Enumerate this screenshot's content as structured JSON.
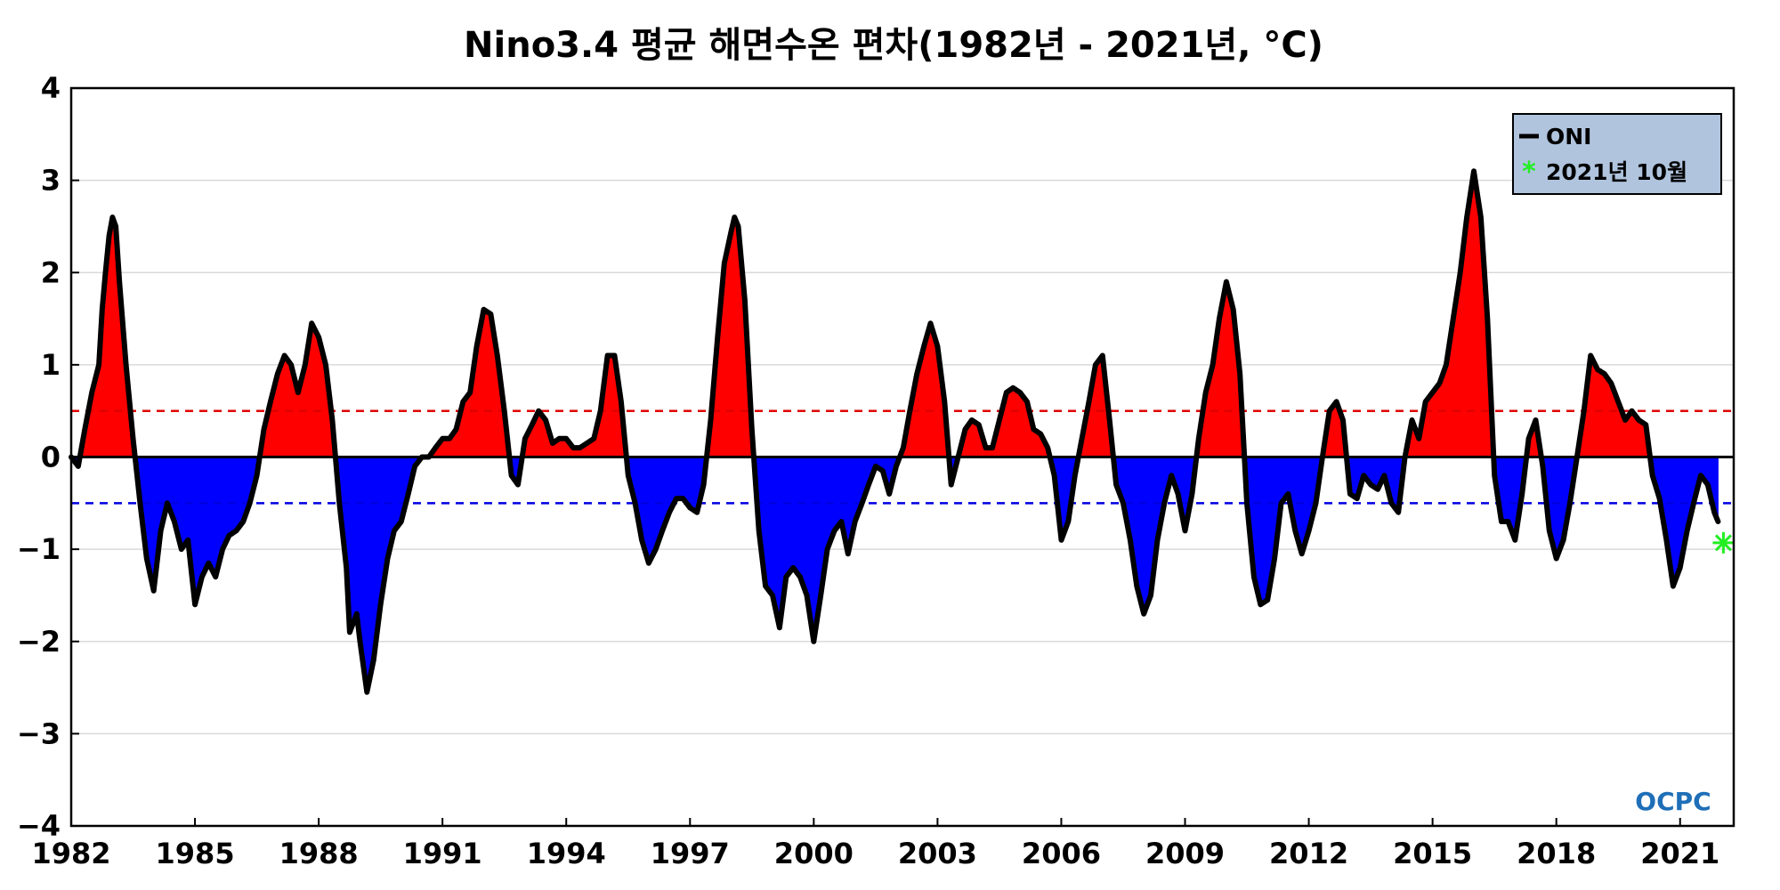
{
  "chart_data": {
    "type": "area",
    "title": "Nino3.4 평균 해면수온 편차(1982년 - 2021년, °C)",
    "xlabel": "",
    "ylabel": "",
    "xlim": [
      1982.0,
      2022.3
    ],
    "ylim": [
      -4,
      4
    ],
    "x_ticks": [
      {
        "value": 1982,
        "label": "1982"
      },
      {
        "value": 1985,
        "label": "1985"
      },
      {
        "value": 1988,
        "label": "1988"
      },
      {
        "value": 1991,
        "label": "1991"
      },
      {
        "value": 1994,
        "label": "1994"
      },
      {
        "value": 1997,
        "label": "1997"
      },
      {
        "value": 2000,
        "label": "2000"
      },
      {
        "value": 2003,
        "label": "2003"
      },
      {
        "value": 2006,
        "label": "2006"
      },
      {
        "value": 2009,
        "label": "2009"
      },
      {
        "value": 2012,
        "label": "2012"
      },
      {
        "value": 2015,
        "label": "2015"
      },
      {
        "value": 2018,
        "label": "2018"
      },
      {
        "value": 2021,
        "label": "2021"
      }
    ],
    "y_ticks": [
      {
        "value": 4,
        "label": "4"
      },
      {
        "value": 3,
        "label": "3"
      },
      {
        "value": 2,
        "label": "2"
      },
      {
        "value": 1,
        "label": "1"
      },
      {
        "value": 0,
        "label": "0"
      },
      {
        "value": -1,
        "label": "−1"
      },
      {
        "value": -2,
        "label": "−2"
      },
      {
        "value": -3,
        "label": "−3"
      },
      {
        "value": -4,
        "label": "−4"
      }
    ],
    "grid": true,
    "thresholds": [
      {
        "value": 0.5,
        "color": "#e00000",
        "style": "dashed"
      },
      {
        "value": -0.5,
        "color": "#0000e0",
        "style": "dashed"
      }
    ],
    "colors": {
      "positive_fill": "#ff0000",
      "negative_fill": "#0000ff",
      "oni_line": "#000000",
      "marker": "#22ee22",
      "legend_bg": "#b0c4de"
    },
    "legend": {
      "position": "top-right",
      "entries": [
        "ONI",
        "2021년 10월"
      ]
    },
    "series": [
      {
        "name": "ONI",
        "points": [
          [
            1982.0,
            0.0
          ],
          [
            1982.17,
            -0.1
          ],
          [
            1982.33,
            0.3
          ],
          [
            1982.5,
            0.7
          ],
          [
            1982.67,
            1.0
          ],
          [
            1982.75,
            1.6
          ],
          [
            1982.83,
            2.0
          ],
          [
            1982.92,
            2.4
          ],
          [
            1983.0,
            2.6
          ],
          [
            1983.08,
            2.5
          ],
          [
            1983.17,
            1.9
          ],
          [
            1983.33,
            1.0
          ],
          [
            1983.5,
            0.2
          ],
          [
            1983.67,
            -0.5
          ],
          [
            1983.83,
            -1.1
          ],
          [
            1984.0,
            -1.45
          ],
          [
            1984.17,
            -0.8
          ],
          [
            1984.33,
            -0.5
          ],
          [
            1984.5,
            -0.7
          ],
          [
            1984.67,
            -1.0
          ],
          [
            1984.83,
            -0.9
          ],
          [
            1985.0,
            -1.6
          ],
          [
            1985.17,
            -1.3
          ],
          [
            1985.33,
            -1.15
          ],
          [
            1985.5,
            -1.3
          ],
          [
            1985.67,
            -1.0
          ],
          [
            1985.83,
            -0.85
          ],
          [
            1986.0,
            -0.8
          ],
          [
            1986.17,
            -0.7
          ],
          [
            1986.33,
            -0.5
          ],
          [
            1986.5,
            -0.2
          ],
          [
            1986.67,
            0.3
          ],
          [
            1986.83,
            0.6
          ],
          [
            1987.0,
            0.9
          ],
          [
            1987.17,
            1.1
          ],
          [
            1987.33,
            1.0
          ],
          [
            1987.5,
            0.7
          ],
          [
            1987.67,
            1.0
          ],
          [
            1987.83,
            1.45
          ],
          [
            1988.0,
            1.3
          ],
          [
            1988.17,
            1.0
          ],
          [
            1988.33,
            0.4
          ],
          [
            1988.5,
            -0.5
          ],
          [
            1988.67,
            -1.2
          ],
          [
            1988.75,
            -1.9
          ],
          [
            1988.92,
            -1.7
          ],
          [
            1989.0,
            -2.0
          ],
          [
            1989.17,
            -2.55
          ],
          [
            1989.33,
            -2.2
          ],
          [
            1989.5,
            -1.6
          ],
          [
            1989.67,
            -1.1
          ],
          [
            1989.83,
            -0.8
          ],
          [
            1990.0,
            -0.7
          ],
          [
            1990.17,
            -0.4
          ],
          [
            1990.33,
            -0.1
          ],
          [
            1990.5,
            0.0
          ],
          [
            1990.67,
            0.0
          ],
          [
            1990.83,
            0.1
          ],
          [
            1991.0,
            0.2
          ],
          [
            1991.17,
            0.2
          ],
          [
            1991.33,
            0.3
          ],
          [
            1991.5,
            0.6
          ],
          [
            1991.67,
            0.7
          ],
          [
            1991.83,
            1.2
          ],
          [
            1992.0,
            1.6
          ],
          [
            1992.17,
            1.55
          ],
          [
            1992.33,
            1.1
          ],
          [
            1992.5,
            0.5
          ],
          [
            1992.67,
            -0.2
          ],
          [
            1992.83,
            -0.3
          ],
          [
            1993.0,
            0.2
          ],
          [
            1993.17,
            0.35
          ],
          [
            1993.33,
            0.5
          ],
          [
            1993.5,
            0.4
          ],
          [
            1993.67,
            0.15
          ],
          [
            1993.83,
            0.2
          ],
          [
            1994.0,
            0.2
          ],
          [
            1994.17,
            0.1
          ],
          [
            1994.33,
            0.1
          ],
          [
            1994.5,
            0.15
          ],
          [
            1994.67,
            0.2
          ],
          [
            1994.83,
            0.5
          ],
          [
            1995.0,
            1.1
          ],
          [
            1995.17,
            1.1
          ],
          [
            1995.33,
            0.6
          ],
          [
            1995.5,
            -0.2
          ],
          [
            1995.67,
            -0.5
          ],
          [
            1995.83,
            -0.9
          ],
          [
            1996.0,
            -1.15
          ],
          [
            1996.17,
            -1.0
          ],
          [
            1996.33,
            -0.8
          ],
          [
            1996.5,
            -0.6
          ],
          [
            1996.67,
            -0.45
          ],
          [
            1996.83,
            -0.45
          ],
          [
            1997.0,
            -0.55
          ],
          [
            1997.17,
            -0.6
          ],
          [
            1997.33,
            -0.3
          ],
          [
            1997.5,
            0.4
          ],
          [
            1997.67,
            1.3
          ],
          [
            1997.83,
            2.1
          ],
          [
            1998.0,
            2.45
          ],
          [
            1998.08,
            2.6
          ],
          [
            1998.17,
            2.5
          ],
          [
            1998.33,
            1.7
          ],
          [
            1998.5,
            0.3
          ],
          [
            1998.67,
            -0.8
          ],
          [
            1998.83,
            -1.4
          ],
          [
            1999.0,
            -1.5
          ],
          [
            1999.17,
            -1.85
          ],
          [
            1999.33,
            -1.3
          ],
          [
            1999.5,
            -1.2
          ],
          [
            1999.67,
            -1.3
          ],
          [
            1999.83,
            -1.5
          ],
          [
            2000.0,
            -2.0
          ],
          [
            2000.17,
            -1.5
          ],
          [
            2000.33,
            -1.0
          ],
          [
            2000.5,
            -0.8
          ],
          [
            2000.67,
            -0.7
          ],
          [
            2000.83,
            -1.05
          ],
          [
            2001.0,
            -0.7
          ],
          [
            2001.17,
            -0.5
          ],
          [
            2001.33,
            -0.3
          ],
          [
            2001.5,
            -0.1
          ],
          [
            2001.67,
            -0.15
          ],
          [
            2001.83,
            -0.4
          ],
          [
            2002.0,
            -0.1
          ],
          [
            2002.17,
            0.1
          ],
          [
            2002.33,
            0.5
          ],
          [
            2002.5,
            0.9
          ],
          [
            2002.67,
            1.2
          ],
          [
            2002.83,
            1.45
          ],
          [
            2003.0,
            1.2
          ],
          [
            2003.17,
            0.6
          ],
          [
            2003.33,
            -0.3
          ],
          [
            2003.5,
            0.0
          ],
          [
            2003.67,
            0.3
          ],
          [
            2003.83,
            0.4
          ],
          [
            2004.0,
            0.35
          ],
          [
            2004.17,
            0.1
          ],
          [
            2004.33,
            0.1
          ],
          [
            2004.5,
            0.4
          ],
          [
            2004.67,
            0.7
          ],
          [
            2004.83,
            0.75
          ],
          [
            2005.0,
            0.7
          ],
          [
            2005.17,
            0.6
          ],
          [
            2005.33,
            0.3
          ],
          [
            2005.5,
            0.25
          ],
          [
            2005.67,
            0.1
          ],
          [
            2005.83,
            -0.2
          ],
          [
            2006.0,
            -0.9
          ],
          [
            2006.17,
            -0.7
          ],
          [
            2006.33,
            -0.2
          ],
          [
            2006.5,
            0.2
          ],
          [
            2006.67,
            0.6
          ],
          [
            2006.83,
            1.0
          ],
          [
            2007.0,
            1.1
          ],
          [
            2007.17,
            0.4
          ],
          [
            2007.33,
            -0.3
          ],
          [
            2007.5,
            -0.5
          ],
          [
            2007.67,
            -0.9
          ],
          [
            2007.83,
            -1.4
          ],
          [
            2008.0,
            -1.7
          ],
          [
            2008.17,
            -1.5
          ],
          [
            2008.33,
            -0.9
          ],
          [
            2008.5,
            -0.5
          ],
          [
            2008.67,
            -0.2
          ],
          [
            2008.83,
            -0.4
          ],
          [
            2009.0,
            -0.8
          ],
          [
            2009.17,
            -0.4
          ],
          [
            2009.33,
            0.2
          ],
          [
            2009.5,
            0.7
          ],
          [
            2009.67,
            1.0
          ],
          [
            2009.83,
            1.5
          ],
          [
            2010.0,
            1.9
          ],
          [
            2010.17,
            1.6
          ],
          [
            2010.33,
            0.9
          ],
          [
            2010.5,
            -0.5
          ],
          [
            2010.67,
            -1.3
          ],
          [
            2010.83,
            -1.6
          ],
          [
            2011.0,
            -1.55
          ],
          [
            2011.17,
            -1.1
          ],
          [
            2011.33,
            -0.5
          ],
          [
            2011.5,
            -0.4
          ],
          [
            2011.67,
            -0.8
          ],
          [
            2011.83,
            -1.05
          ],
          [
            2012.0,
            -0.8
          ],
          [
            2012.17,
            -0.5
          ],
          [
            2012.33,
            0.0
          ],
          [
            2012.5,
            0.5
          ],
          [
            2012.67,
            0.6
          ],
          [
            2012.83,
            0.4
          ],
          [
            2013.0,
            -0.4
          ],
          [
            2013.17,
            -0.45
          ],
          [
            2013.33,
            -0.2
          ],
          [
            2013.5,
            -0.3
          ],
          [
            2013.67,
            -0.35
          ],
          [
            2013.83,
            -0.2
          ],
          [
            2014.0,
            -0.5
          ],
          [
            2014.17,
            -0.6
          ],
          [
            2014.33,
            0.0
          ],
          [
            2014.5,
            0.4
          ],
          [
            2014.67,
            0.2
          ],
          [
            2014.83,
            0.6
          ],
          [
            2015.0,
            0.7
          ],
          [
            2015.17,
            0.8
          ],
          [
            2015.33,
            1.0
          ],
          [
            2015.5,
            1.5
          ],
          [
            2015.67,
            2.0
          ],
          [
            2015.83,
            2.6
          ],
          [
            2016.0,
            3.1
          ],
          [
            2016.17,
            2.6
          ],
          [
            2016.33,
            1.5
          ],
          [
            2016.5,
            -0.2
          ],
          [
            2016.67,
            -0.7
          ],
          [
            2016.83,
            -0.7
          ],
          [
            2017.0,
            -0.9
          ],
          [
            2017.17,
            -0.4
          ],
          [
            2017.33,
            0.2
          ],
          [
            2017.5,
            0.4
          ],
          [
            2017.67,
            -0.1
          ],
          [
            2017.83,
            -0.8
          ],
          [
            2018.0,
            -1.1
          ],
          [
            2018.17,
            -0.9
          ],
          [
            2018.33,
            -0.5
          ],
          [
            2018.5,
            0.0
          ],
          [
            2018.67,
            0.5
          ],
          [
            2018.83,
            1.1
          ],
          [
            2019.0,
            0.95
          ],
          [
            2019.17,
            0.9
          ],
          [
            2019.33,
            0.8
          ],
          [
            2019.5,
            0.6
          ],
          [
            2019.67,
            0.4
          ],
          [
            2019.83,
            0.5
          ],
          [
            2020.0,
            0.4
          ],
          [
            2020.17,
            0.35
          ],
          [
            2020.33,
            -0.2
          ],
          [
            2020.5,
            -0.45
          ],
          [
            2020.67,
            -0.9
          ],
          [
            2020.83,
            -1.4
          ],
          [
            2021.0,
            -1.2
          ],
          [
            2021.17,
            -0.8
          ],
          [
            2021.33,
            -0.5
          ],
          [
            2021.5,
            -0.2
          ],
          [
            2021.67,
            -0.3
          ],
          [
            2021.83,
            -0.6
          ],
          [
            2021.92,
            -0.7
          ]
        ]
      },
      {
        "name": "2021년 10월",
        "points": [
          [
            2022.05,
            -0.93
          ]
        ]
      }
    ]
  },
  "watermark": "OCPC"
}
